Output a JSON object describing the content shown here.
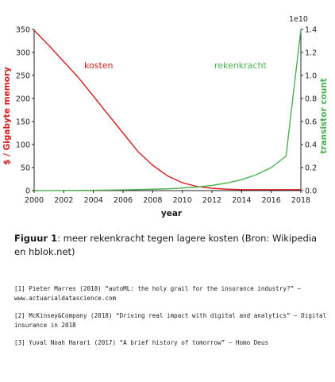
{
  "chart_data": {
    "type": "line",
    "x": [
      2000,
      2001,
      2002,
      2003,
      2004,
      2005,
      2006,
      2007,
      2008,
      2009,
      2010,
      2011,
      2012,
      2013,
      2014,
      2015,
      2016,
      2017,
      2018
    ],
    "series": [
      {
        "name": "kosten",
        "axis": "left",
        "color": "#d7191c",
        "values": [
          348,
          315,
          280,
          245,
          205,
          165,
          125,
          85,
          55,
          32,
          17,
          9,
          5,
          3,
          2,
          2,
          2,
          2,
          2
        ]
      },
      {
        "name": "rekenkracht",
        "axis": "right",
        "color": "#4caf50",
        "values": [
          0.0,
          5000000.0,
          12000000.0,
          20000000.0,
          30000000.0,
          45000000.0,
          65000000.0,
          90000000.0,
          120000000.0,
          160000000.0,
          220000000.0,
          310000000.0,
          450000000.0,
          650000000.0,
          950000000.0,
          1380000000.0,
          2000000000.0,
          3000000000.0,
          14000000000.0
        ]
      }
    ],
    "xlabel": "year",
    "ylabel_left": "$ / Gigabyte memory",
    "ylabel_right": "transistor count",
    "right_axis_multiplier": "1e10",
    "xticks": [
      2000,
      2002,
      2004,
      2006,
      2008,
      2010,
      2012,
      2014,
      2016,
      2018
    ],
    "yticks_left": [
      0,
      50,
      100,
      150,
      200,
      250,
      300,
      350
    ],
    "yticks_right": [
      0,
      0.2,
      0.4,
      0.6,
      0.8,
      1.0,
      1.2,
      1.4
    ],
    "yticks_right_labels": [
      "0.0",
      "0.2",
      "0.4",
      "0.6",
      "0.8",
      "1.0",
      "1.2",
      "1.4"
    ],
    "xlim": [
      2000,
      2018
    ],
    "ylim_left": [
      0,
      350
    ],
    "ylim_right": [
      0,
      14000000000.0
    ],
    "grid": false,
    "colors": {
      "left_axis": "#d7191c",
      "right_axis": "#4caf50"
    }
  },
  "caption": {
    "label": "Figuur 1",
    "text": ": meer rekenkracht tegen lagere kosten (Bron: Wikipedia en hblok.net)"
  },
  "references": [
    "[1] Pieter Marres (2018) “autoML: the holy grail for the insurance industry?” – www.actuarialdatascience.com",
    "[2] McKinsey&Company (2018) “Driving real impact with digital and analytics” – Digital insurance in 2018",
    "[3] Yuval Noah Harari (2017) “A brief history of tomorrow” – Homo Deus"
  ]
}
